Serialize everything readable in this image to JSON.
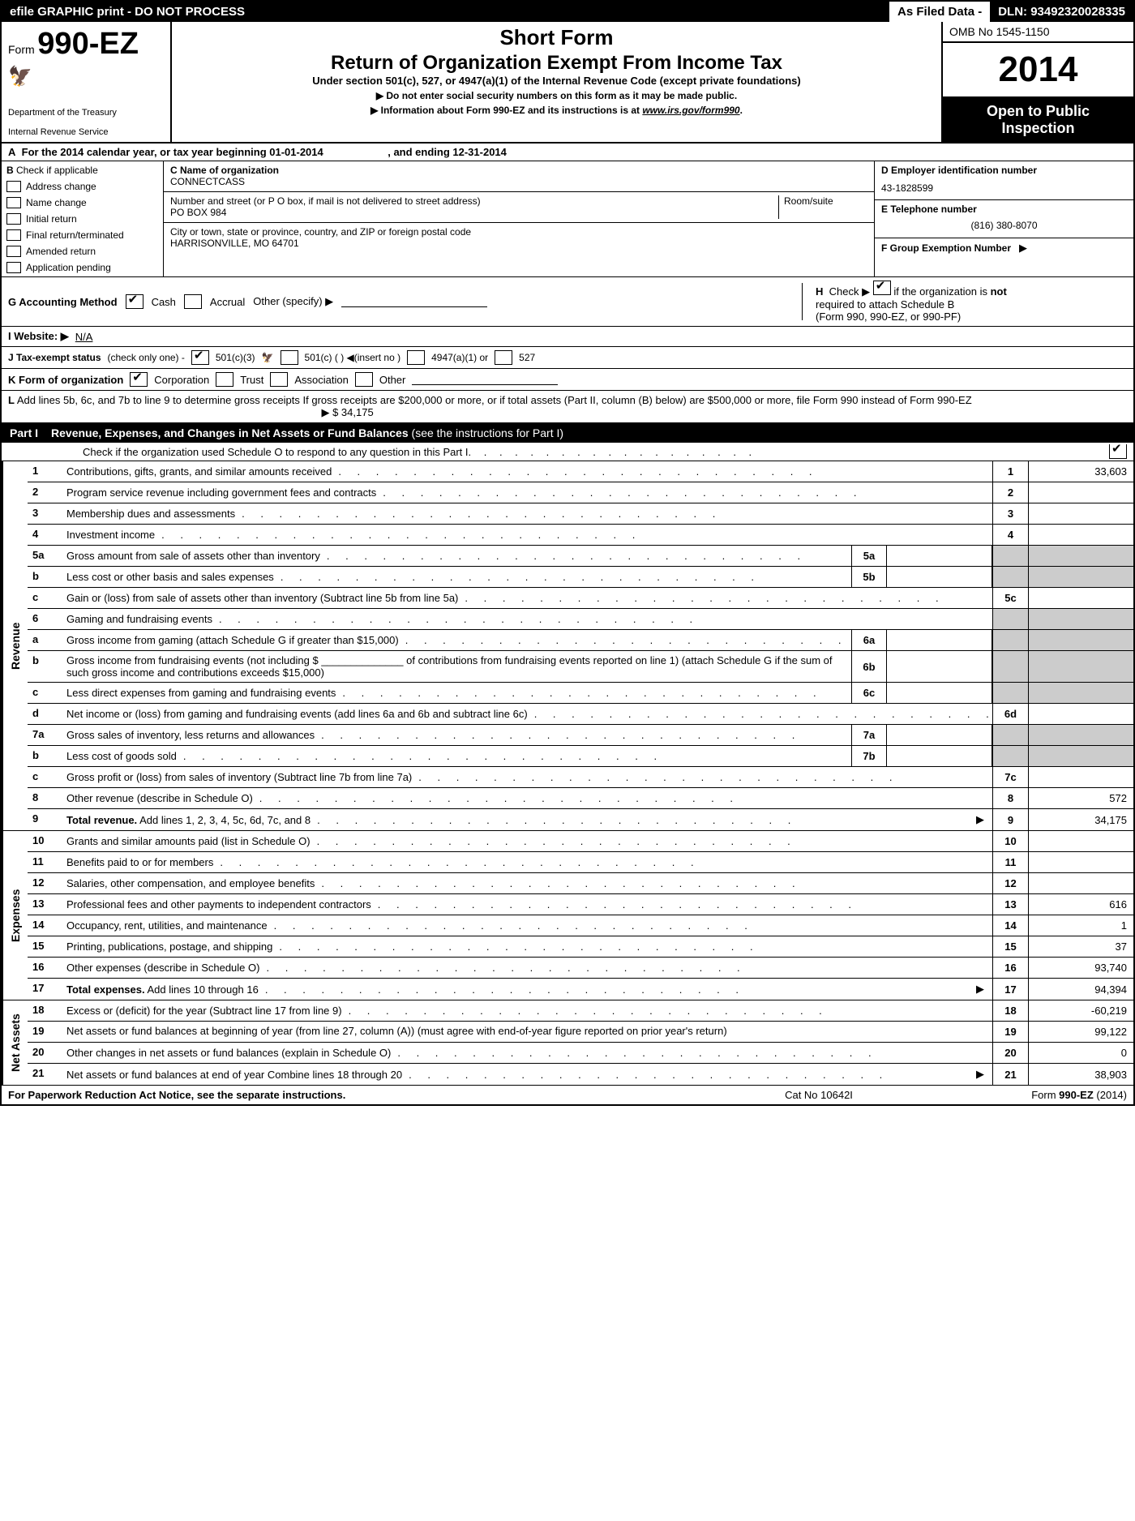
{
  "top_bar": {
    "left": "efile GRAPHIC print - DO NOT PROCESS",
    "mid": "As Filed Data -",
    "right": "DLN: 93492320028335"
  },
  "header": {
    "form_prefix": "Form",
    "form_number": "990-EZ",
    "dept1": "Department of the Treasury",
    "dept2": "Internal Revenue Service",
    "short_form": "Short Form",
    "main_title": "Return of Organization Exempt From Income Tax",
    "sub_title": "Under section 501(c), 527, or 4947(a)(1) of the Internal Revenue Code (except private foundations)",
    "arrow1": "▶ Do not enter social security numbers on this form as it may be made public.",
    "arrow2_pre": "▶ Information about Form 990-EZ and its instructions is at ",
    "arrow2_link": "www.irs.gov/form990",
    "arrow2_post": ".",
    "omb": "OMB No 1545-1150",
    "year": "2014",
    "open1": "Open to Public",
    "open2": "Inspection"
  },
  "row_A": {
    "label": "A",
    "text1": "For the 2014 calendar year, or tax year beginning 01-01-2014",
    "text2": ", and ending 12-31-2014"
  },
  "col_B": {
    "label": "B",
    "intro": "Check if applicable",
    "items": [
      "Address change",
      "Name change",
      "Initial return",
      "Final return/terminated",
      "Amended return",
      "Application pending"
    ]
  },
  "col_mid": {
    "c_label": "C Name of organization",
    "c_value": "CONNECTCASS",
    "street_label": "Number and street (or P O box, if mail is not delivered to street address)",
    "room_label": "Room/suite",
    "street_value": "PO BOX 984",
    "city_label": "City or town, state or province, country, and ZIP or foreign postal code",
    "city_value": "HARRISONVILLE, MO  64701"
  },
  "col_right": {
    "d_label": "D Employer identification number",
    "d_value": "43-1828599",
    "e_label": "E Telephone number",
    "e_value": "(816) 380-8070",
    "f_label": "F Group Exemption Number",
    "f_arrow": "▶"
  },
  "row_GH": {
    "g_label": "G Accounting Method",
    "g_cash": "Cash",
    "g_accrual": "Accrual",
    "g_other": "Other (specify) ▶",
    "h_label": "H",
    "h_text1": "Check ▶",
    "h_text2": "if the organization is",
    "h_not": "not",
    "h_text3": "required to attach Schedule B",
    "h_text4": "(Form 990, 990-EZ, or 990-PF)"
  },
  "row_I": {
    "label": "I Website: ▶",
    "value": "N/A"
  },
  "row_J": {
    "label": "J Tax-exempt status",
    "note": "(check only one) -",
    "o1": "501(c)(3)",
    "o2": "501(c) (   ) ◀(insert no )",
    "o3": "4947(a)(1) or",
    "o4": "527"
  },
  "row_K": {
    "label": "K Form of organization",
    "o1": "Corporation",
    "o2": "Trust",
    "o3": "Association",
    "o4": "Other"
  },
  "row_L": {
    "label": "L",
    "text": "Add lines 5b, 6c, and 7b to line 9 to determine gross receipts  If gross receipts are $200,000 or more, or if total assets (Part II, column (B) below) are $500,000 or more, file Form 990 instead of Form 990-EZ",
    "arrow": "▶",
    "value": "$ 34,175"
  },
  "part1": {
    "label": "Part I",
    "title": "Revenue, Expenses, and Changes in Net Assets or Fund Balances",
    "note": "(see the instructions for Part I)",
    "sched_o": "Check if the organization used Schedule O to respond to any question in this Part I"
  },
  "sections": {
    "revenue": "Revenue",
    "expenses": "Expenses",
    "netassets": "Net Assets"
  },
  "lines": [
    {
      "n": "1",
      "d": "Contributions, gifts, grants, and similar amounts received",
      "en": "1",
      "ev": "33,603"
    },
    {
      "n": "2",
      "d": "Program service revenue including government fees and contracts",
      "en": "2",
      "ev": ""
    },
    {
      "n": "3",
      "d": "Membership dues and assessments",
      "en": "3",
      "ev": ""
    },
    {
      "n": "4",
      "d": "Investment income",
      "en": "4",
      "ev": ""
    },
    {
      "n": "5a",
      "d": "Gross amount from sale of assets other than inventory",
      "sn": "5a",
      "sv": "",
      "shaded_end": true
    },
    {
      "n": "b",
      "d": "Less  cost or other basis and sales expenses",
      "sn": "5b",
      "sv": "",
      "shaded_end": true
    },
    {
      "n": "c",
      "d": "Gain or (loss) from sale of assets other than inventory (Subtract line 5b from line 5a)",
      "en": "5c",
      "ev": ""
    },
    {
      "n": "6",
      "d": "Gaming and fundraising events",
      "shaded_end": true,
      "no_end_num": true
    },
    {
      "n": "a",
      "d": "Gross income from gaming (attach Schedule G if greater than $15,000)",
      "sn": "6a",
      "sv": "",
      "shaded_end": true
    },
    {
      "n": "b",
      "d": "Gross income from fundraising events (not including $ ______________ of contributions from fundraising events reported on line 1) (attach Schedule G if the sum of such gross income and contributions exceeds $15,000)",
      "sn": "6b",
      "sv": "",
      "shaded_end": true,
      "multi": true
    },
    {
      "n": "c",
      "d": "Less  direct expenses from gaming and fundraising events",
      "sn": "6c",
      "sv": "",
      "shaded_end": true
    },
    {
      "n": "d",
      "d": "Net income or (loss) from gaming and fundraising events (add lines 6a and 6b and subtract line 6c)",
      "en": "6d",
      "ev": ""
    },
    {
      "n": "7a",
      "d": "Gross sales of inventory, less returns and allowances",
      "sn": "7a",
      "sv": "",
      "shaded_end": true
    },
    {
      "n": "b",
      "d": "Less  cost of goods sold",
      "sn": "7b",
      "sv": "",
      "shaded_end": true
    },
    {
      "n": "c",
      "d": "Gross profit or (loss) from sales of inventory (Subtract line 7b from line 7a)",
      "en": "7c",
      "ev": ""
    },
    {
      "n": "8",
      "d": "Other revenue (describe in Schedule O)",
      "en": "8",
      "ev": "572"
    },
    {
      "n": "9",
      "d": "Total revenue. Add lines 1, 2, 3, 4, 5c, 6d, 7c, and 8",
      "en": "9",
      "ev": "34,175",
      "bold": true,
      "arrow": true
    }
  ],
  "exp_lines": [
    {
      "n": "10",
      "d": "Grants and similar amounts paid (list in Schedule O)",
      "en": "10",
      "ev": ""
    },
    {
      "n": "11",
      "d": "Benefits paid to or for members",
      "en": "11",
      "ev": ""
    },
    {
      "n": "12",
      "d": "Salaries, other compensation, and employee benefits",
      "en": "12",
      "ev": ""
    },
    {
      "n": "13",
      "d": "Professional fees and other payments to independent contractors",
      "en": "13",
      "ev": "616"
    },
    {
      "n": "14",
      "d": "Occupancy, rent, utilities, and maintenance",
      "en": "14",
      "ev": "1"
    },
    {
      "n": "15",
      "d": "Printing, publications, postage, and shipping",
      "en": "15",
      "ev": "37"
    },
    {
      "n": "16",
      "d": "Other expenses (describe in Schedule O)",
      "en": "16",
      "ev": "93,740"
    },
    {
      "n": "17",
      "d": "Total expenses. Add lines 10 through 16",
      "en": "17",
      "ev": "94,394",
      "bold": true,
      "arrow": true
    }
  ],
  "na_lines": [
    {
      "n": "18",
      "d": "Excess or (deficit) for the year (Subtract line 17 from line 9)",
      "en": "18",
      "ev": "-60,219"
    },
    {
      "n": "19",
      "d": "Net assets or fund balances at beginning of year (from line 27, column (A)) (must agree with end-of-year figure reported on prior year's return)",
      "en": "19",
      "ev": "99,122",
      "multi": true
    },
    {
      "n": "20",
      "d": "Other changes in net assets or fund balances (explain in Schedule O)",
      "en": "20",
      "ev": "0"
    },
    {
      "n": "21",
      "d": "Net assets or fund balances at end of year  Combine lines 18 through 20",
      "en": "21",
      "ev": "38,903",
      "arrow": true
    }
  ],
  "footer": {
    "left": "For Paperwork Reduction Act Notice, see the separate instructions.",
    "mid": "Cat No 10642I",
    "right_pre": "Form ",
    "right_bold": "990-EZ",
    "right_post": " (2014)"
  },
  "colors": {
    "black": "#000000",
    "white": "#ffffff",
    "shade": "#cccccc"
  }
}
